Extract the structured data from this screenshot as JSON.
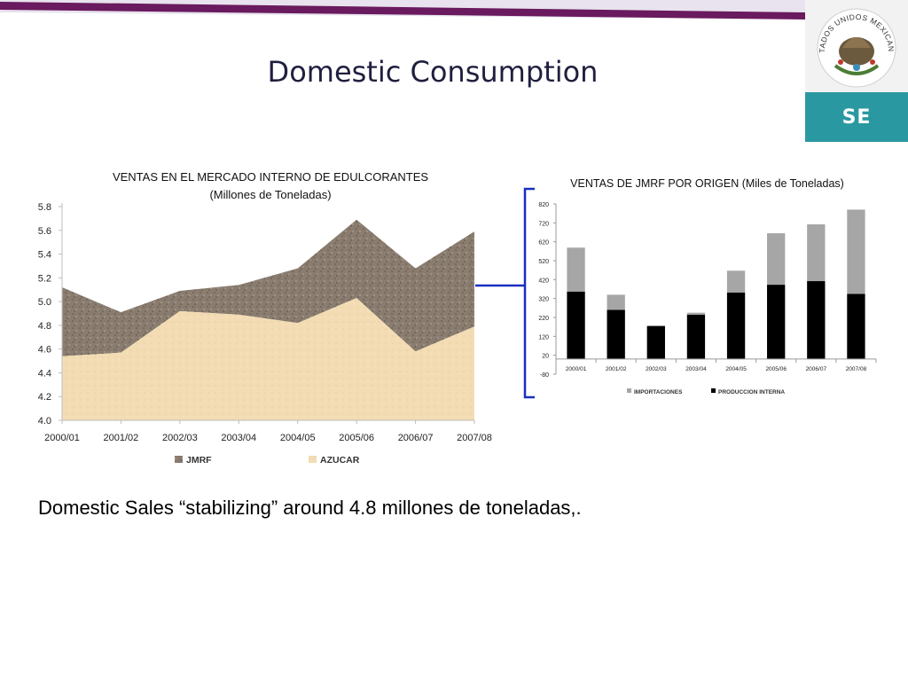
{
  "slide": {
    "title": "Domestic Consumption",
    "body_text": "Domestic Sales “stabilizing” around 4.8 millones de toneladas,.",
    "logo": {
      "seal_text": "ESTADOS UNIDOS MEXICANOS",
      "badge": "SE"
    },
    "colors": {
      "top_bar": "#6a1a5e",
      "teal": "#2a98a1",
      "bracket": "#1a2fbf"
    }
  },
  "chart_data": [
    {
      "type": "area",
      "title": "VENTAS EN EL MERCADO INTERNO DE EDULCORANTES",
      "subtitle": "(Millones de Toneladas)",
      "categories": [
        "2000/01",
        "2001/02",
        "2002/03",
        "2003/04",
        "2004/05",
        "2005/06",
        "2006/07",
        "2007/08"
      ],
      "series": [
        {
          "name": "AZUCAR",
          "values": [
            4.54,
            4.57,
            4.92,
            4.89,
            4.82,
            5.03,
            4.58,
            4.79
          ]
        },
        {
          "name": "JMRF",
          "values": [
            5.12,
            4.91,
            5.09,
            5.14,
            5.28,
            5.69,
            5.28,
            5.59
          ]
        }
      ],
      "ylim": [
        4.0,
        5.8
      ],
      "yticks": [
        "5.8",
        "5.6",
        "5.4",
        "5.2",
        "5.0",
        "4.8",
        "4.6",
        "4.4",
        "4.2",
        "4.0"
      ],
      "legend": [
        {
          "name": "JMRF",
          "color": "#8a7d70"
        },
        {
          "name": "AZUCAR",
          "color": "#f3dcb4"
        }
      ],
      "legend_position": "bottom"
    },
    {
      "type": "bar",
      "stacked": true,
      "title": "VENTAS DE JMRF POR ORIGEN (Miles de Toneladas)",
      "categories": [
        "2000/01",
        "2001/02",
        "2002/03",
        "2003/04",
        "2004/05",
        "2005/06",
        "2006/07",
        "2007/08"
      ],
      "series": [
        {
          "name": "PRODUCCION INTERNA",
          "values": [
            357,
            260,
            175,
            235,
            352,
            393,
            412,
            345
          ],
          "color": "#000000"
        },
        {
          "name": "IMPORTACIONES",
          "values": [
            232,
            80,
            0,
            10,
            115,
            272,
            300,
            445
          ],
          "color": "#a6a6a6"
        }
      ],
      "ylim": [
        -80,
        820
      ],
      "yticks": [
        "820",
        "720",
        "620",
        "520",
        "420",
        "320",
        "220",
        "120",
        "20",
        "-80"
      ],
      "legend_position": "bottom"
    }
  ]
}
